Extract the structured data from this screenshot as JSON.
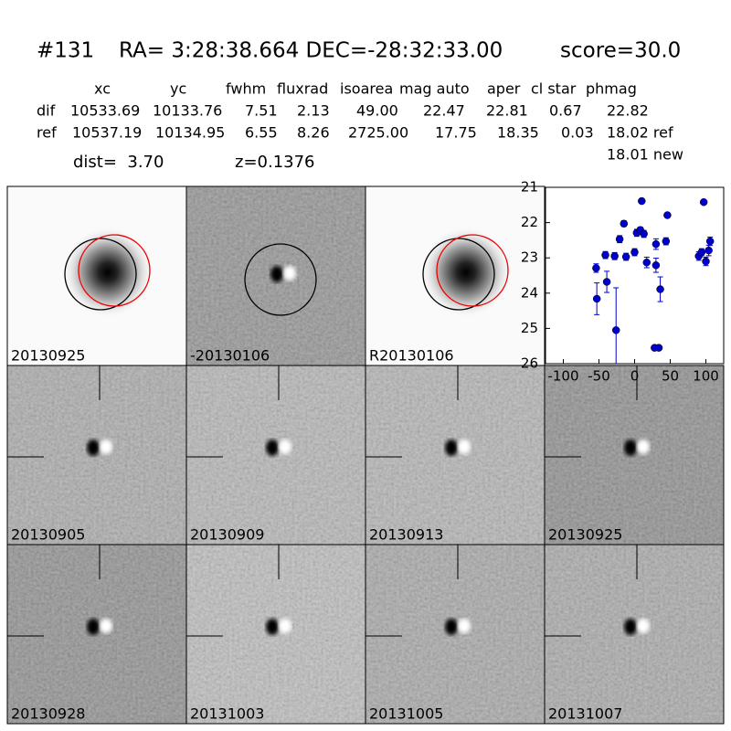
{
  "header": {
    "id": "#131",
    "coords": "RA= 3:28:38.664 DEC=-28:32:33.00",
    "score": "score=30.0"
  },
  "table": {
    "columns": [
      "xc",
      "yc",
      "fwhm",
      "fluxrad",
      "isoarea",
      "mag auto",
      "aper",
      "cl star",
      "phmag"
    ],
    "rows": [
      [
        "dif",
        "10533.69",
        "10133.76",
        "7.51",
        "2.13",
        "49.00",
        "22.47",
        "22.81",
        "0.67",
        "22.82"
      ],
      [
        "ref",
        "10537.19",
        "10134.95",
        "6.55",
        "8.26",
        "2725.00",
        "17.75",
        "18.35",
        "0.03",
        "18.02 ref"
      ]
    ],
    "extra": "18.01 new"
  },
  "dist": "dist=  3.70",
  "z": "z=0.1376",
  "panels": [
    {
      "label": "20130925"
    },
    {
      "label": "-20130106"
    },
    {
      "label": "R20130106"
    },
    {
      "label": "20130905"
    },
    {
      "label": "20130909"
    },
    {
      "label": "20130913"
    },
    {
      "label": "20130925",
      "color": "#ff0000"
    },
    {
      "label": "20130928"
    },
    {
      "label": "20131003"
    },
    {
      "label": "20131005"
    },
    {
      "label": "20131007"
    }
  ],
  "chart_data": {
    "type": "scatter",
    "color": "#0000cc",
    "x": [
      -54,
      -53,
      -41,
      -39,
      -28,
      -26,
      -21,
      -15,
      -12,
      3,
      0,
      8,
      10,
      13,
      17,
      28,
      34,
      30,
      30,
      36,
      44,
      46,
      90,
      94,
      97,
      100,
      104,
      106
    ],
    "values": [
      23.29,
      24.16,
      22.92,
      23.68,
      22.95,
      25.05,
      22.47,
      22.03,
      22.97,
      22.29,
      22.84,
      22.21,
      21.39,
      22.32,
      23.13,
      25.55,
      25.55,
      22.61,
      23.21,
      23.89,
      22.53,
      21.79,
      22.95,
      22.84,
      21.42,
      23.1,
      22.79,
      22.53
    ],
    "errors": [
      0.12,
      0.45,
      0.1,
      0.3,
      0.1,
      1.2,
      0.1,
      0.08,
      0.1,
      0.1,
      0.1,
      0.08,
      0.05,
      0.1,
      0.15,
      0.05,
      0.05,
      0.15,
      0.2,
      0.35,
      0.1,
      0.05,
      0.12,
      0.1,
      0.05,
      0.12,
      0.15,
      0.12
    ],
    "xlim": [
      -125,
      125
    ],
    "ylim": [
      26,
      21
    ],
    "xticks": [
      -100,
      -50,
      0,
      50,
      100
    ],
    "yticks": [
      21,
      22,
      23,
      24,
      25,
      26
    ]
  }
}
